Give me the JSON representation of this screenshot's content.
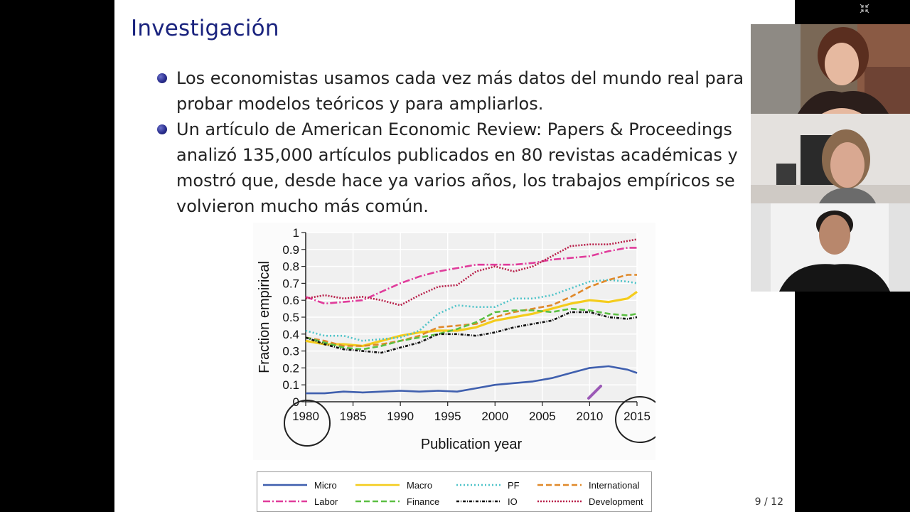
{
  "slide": {
    "title": "Investigación",
    "bullets": [
      "Los economistas usamos cada vez más datos del mundo real para probar modelos teóricos y para ampliarlos.",
      "Un artículo de American Economic Review: Papers & Proceedings analizó 135,000 artículos publicados en 80 revistas académicas y mostró que, desde hace ya varios años, los trabajos empíricos se volvieron mucho más común."
    ],
    "page_number": "9 / 12"
  },
  "chart_data": {
    "type": "line",
    "xlabel": "Publication year",
    "ylabel": "Fraction empirical",
    "xlim": [
      1980,
      2015
    ],
    "ylim": [
      0,
      1
    ],
    "xticks": [
      "1980",
      "1985",
      "1990",
      "1995",
      "2000",
      "2005",
      "2010",
      "2015"
    ],
    "yticks": [
      "0",
      "0.1",
      "0.2",
      "0.3",
      "0.4",
      "0.5",
      "0.6",
      "0.7",
      "0.8",
      "0.9",
      "1"
    ],
    "x": [
      1980,
      1982,
      1984,
      1986,
      1988,
      1990,
      1992,
      1994,
      1996,
      1998,
      2000,
      2002,
      2004,
      2006,
      2008,
      2010,
      2012,
      2014,
      2015
    ],
    "grid": true,
    "legend_position": "bottom",
    "series": [
      {
        "name": "Micro",
        "color": "#3f5fae",
        "dash": "",
        "values": [
          0.05,
          0.05,
          0.06,
          0.055,
          0.06,
          0.065,
          0.06,
          0.065,
          0.06,
          0.08,
          0.1,
          0.11,
          0.12,
          0.14,
          0.17,
          0.2,
          0.21,
          0.19,
          0.17
        ]
      },
      {
        "name": "Macro",
        "color": "#f4cc1c",
        "dash": "",
        "values": [
          0.36,
          0.34,
          0.34,
          0.33,
          0.36,
          0.39,
          0.41,
          0.42,
          0.42,
          0.44,
          0.48,
          0.5,
          0.52,
          0.55,
          0.58,
          0.6,
          0.59,
          0.61,
          0.65
        ]
      },
      {
        "name": "PF",
        "color": "#4fc4c9",
        "dash": "2 3",
        "values": [
          0.42,
          0.39,
          0.39,
          0.36,
          0.37,
          0.38,
          0.42,
          0.52,
          0.57,
          0.56,
          0.56,
          0.61,
          0.61,
          0.63,
          0.67,
          0.71,
          0.72,
          0.71,
          0.7
        ]
      },
      {
        "name": "International",
        "color": "#e0892a",
        "dash": "8 4",
        "values": [
          0.38,
          0.36,
          0.33,
          0.33,
          0.34,
          0.36,
          0.39,
          0.44,
          0.45,
          0.46,
          0.5,
          0.53,
          0.55,
          0.57,
          0.62,
          0.68,
          0.72,
          0.75,
          0.75
        ]
      },
      {
        "name": "Labor",
        "color": "#e03c9b",
        "dash": "10 3 2 3",
        "values": [
          0.62,
          0.58,
          0.59,
          0.6,
          0.65,
          0.7,
          0.74,
          0.77,
          0.79,
          0.81,
          0.81,
          0.81,
          0.82,
          0.84,
          0.85,
          0.86,
          0.89,
          0.91,
          0.91
        ]
      },
      {
        "name": "Finance",
        "color": "#5cbf43",
        "dash": "8 4",
        "values": [
          0.38,
          0.35,
          0.32,
          0.31,
          0.33,
          0.36,
          0.38,
          0.4,
          0.43,
          0.47,
          0.53,
          0.54,
          0.54,
          0.53,
          0.55,
          0.54,
          0.52,
          0.51,
          0.52
        ]
      },
      {
        "name": "IO",
        "color": "#111111",
        "dash": "4 2 1 2",
        "values": [
          0.38,
          0.34,
          0.31,
          0.3,
          0.29,
          0.32,
          0.35,
          0.4,
          0.4,
          0.39,
          0.41,
          0.44,
          0.46,
          0.48,
          0.53,
          0.53,
          0.5,
          0.49,
          0.5
        ]
      },
      {
        "name": "Development",
        "color": "#b8204a",
        "dash": "2 2",
        "values": [
          0.61,
          0.63,
          0.61,
          0.62,
          0.6,
          0.57,
          0.63,
          0.68,
          0.69,
          0.77,
          0.8,
          0.77,
          0.8,
          0.86,
          0.92,
          0.93,
          0.93,
          0.95,
          0.96
        ]
      }
    ]
  },
  "participants": [
    {
      "label": "participant-1"
    },
    {
      "label": "participant-2"
    },
    {
      "label": "participant-3"
    }
  ],
  "icons": {
    "minimize": "minimize-icon"
  }
}
